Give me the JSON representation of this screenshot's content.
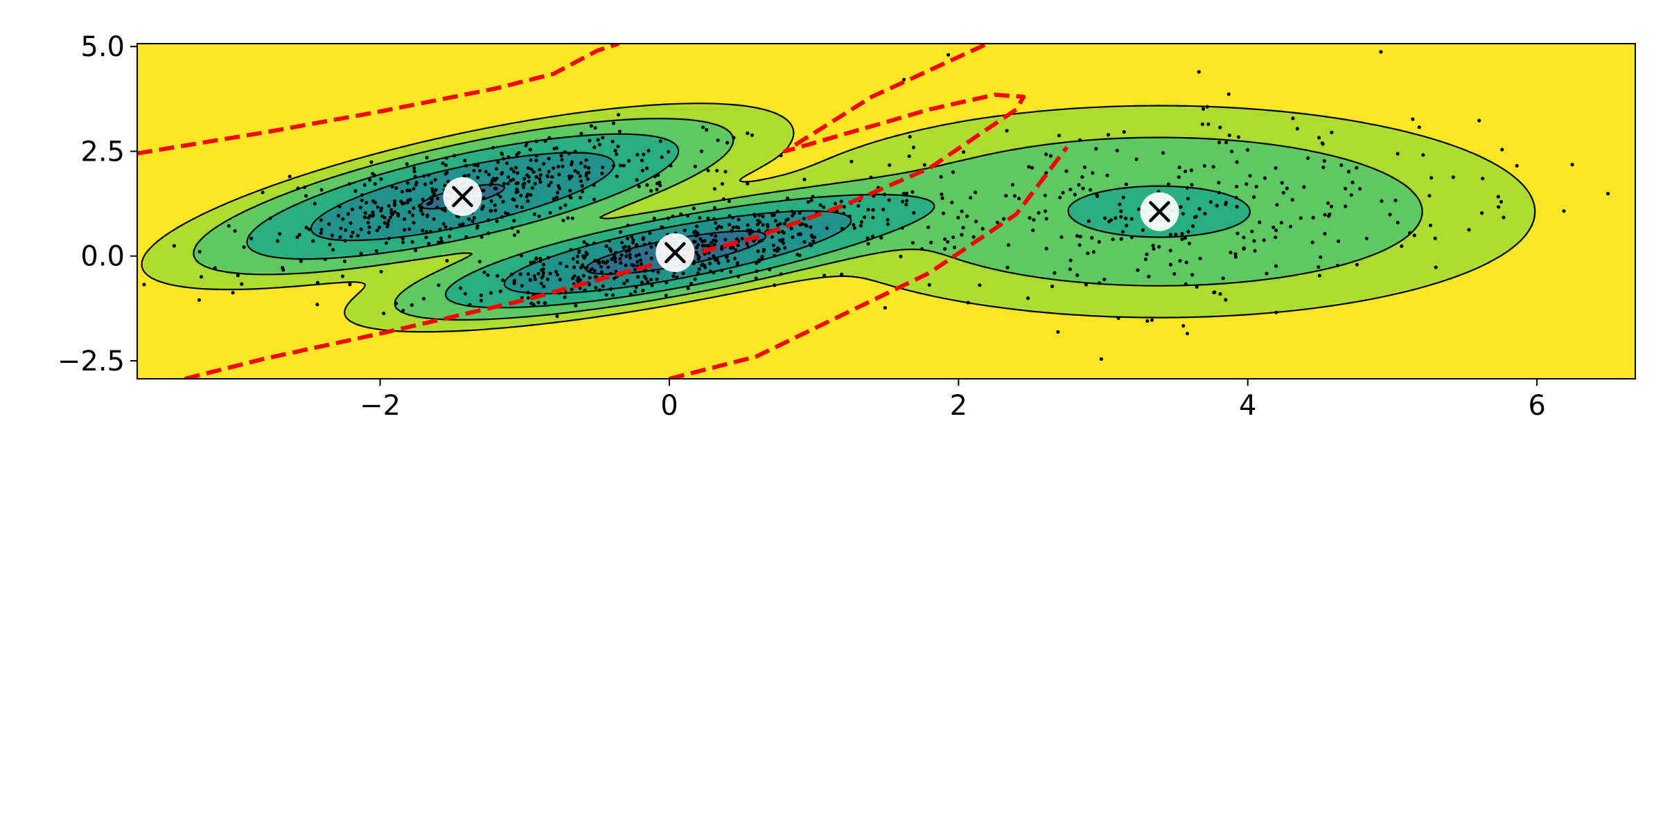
{
  "chart_data": {
    "type": "contour",
    "title": "",
    "xlabel": "",
    "ylabel": "",
    "xlim": [
      -3.68,
      6.68
    ],
    "ylim": [
      -2.93,
      5.07
    ],
    "xticks": [
      -2,
      0,
      2,
      4,
      6
    ],
    "xtick_labels": [
      "−2",
      "0",
      "2",
      "4",
      "6"
    ],
    "yticks": [
      -2.5,
      0.0,
      2.5,
      5.0
    ],
    "ytick_labels": [
      "−2.5",
      "0.0",
      "2.5",
      "5.0"
    ],
    "grid": false,
    "legend": "none",
    "colormap": [
      "#440154",
      "#472d7b",
      "#3b528b",
      "#2c728e",
      "#21918c",
      "#28ae80",
      "#5ec962",
      "#addc30",
      "#fde725"
    ],
    "background_fill": "#84d44b",
    "contour_line_color": "#000000",
    "decision_boundary_color": "#ff0000",
    "marker_color": "#000000",
    "components": [
      {
        "mean": [
          -1.43,
          1.42
        ],
        "weight": 0.39,
        "sx": 0.75,
        "sy": 0.75,
        "rho": 0.73
      },
      {
        "mean": [
          0.04,
          0.08
        ],
        "weight": 0.4,
        "sx": 0.75,
        "sy": 0.62,
        "rho": 0.76
      },
      {
        "mean": [
          3.39,
          1.06
        ],
        "weight": 0.21,
        "sx": 1.15,
        "sy": 1.12,
        "rho": 0.0
      }
    ],
    "centroids": [
      {
        "x": -1.43,
        "y": 1.42
      },
      {
        "x": 0.04,
        "y": 0.08
      },
      {
        "x": 3.39,
        "y": 1.06
      }
    ],
    "decision_boundaries": [
      [
        [
          -3.68,
          2.45
        ],
        [
          -2.8,
          2.95
        ],
        [
          -2.0,
          3.45
        ],
        [
          -1.2,
          4.0
        ],
        [
          -0.8,
          4.35
        ],
        [
          -0.5,
          4.9
        ],
        [
          -0.35,
          5.07
        ]
      ],
      [
        [
          -3.35,
          -2.93
        ],
        [
          -2.8,
          -2.45
        ],
        [
          -2.0,
          -1.85
        ],
        [
          -1.0,
          -1.05
        ],
        [
          0.0,
          -0.1
        ],
        [
          0.6,
          0.45
        ],
        [
          1.2,
          1.2
        ],
        [
          1.8,
          2.1
        ],
        [
          2.4,
          3.5
        ],
        [
          2.45,
          3.8
        ],
        [
          2.25,
          3.85
        ],
        [
          1.8,
          3.5
        ],
        [
          1.2,
          2.9
        ],
        [
          0.8,
          2.5
        ],
        [
          1.4,
          3.8
        ],
        [
          2.2,
          5.07
        ]
      ],
      [
        [
          0.0,
          -2.93
        ],
        [
          0.6,
          -2.4
        ],
        [
          1.2,
          -1.4
        ],
        [
          1.8,
          -0.4
        ],
        [
          2.4,
          1.0
        ],
        [
          2.75,
          2.6
        ]
      ]
    ]
  }
}
